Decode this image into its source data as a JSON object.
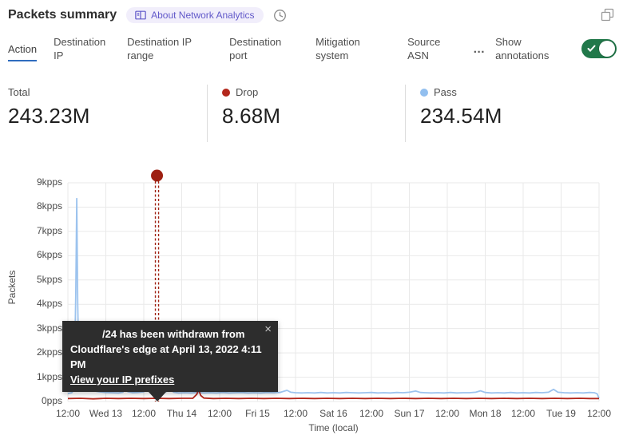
{
  "header": {
    "title": "Packets summary",
    "badge_label": "About Network Analytics"
  },
  "tabs": {
    "items": [
      {
        "label": "Action",
        "active": true
      },
      {
        "label": "Destination IP",
        "active": false
      },
      {
        "label": "Destination IP range",
        "active": false
      },
      {
        "label": "Destination port",
        "active": false
      },
      {
        "label": "Mitigation system",
        "active": false
      },
      {
        "label": "Source ASN",
        "active": false
      }
    ],
    "more_label": "…",
    "annotations_label": "Show annotations",
    "annotations_enabled": true,
    "toggle_color": "#21784a"
  },
  "stats": {
    "columns": [
      {
        "label": "Total",
        "value": "243.23M",
        "dot_color": null
      },
      {
        "label": "Drop",
        "value": "8.68M",
        "dot_color": "#b3271c"
      },
      {
        "label": "Pass",
        "value": "234.54M",
        "dot_color": "#92bfef"
      }
    ]
  },
  "tooltip": {
    "line1": "/24 has been withdrawn from",
    "line2": "Cloudflare's edge at April 13, 2022 4:11 PM",
    "link": "View your IP prefixes",
    "close": "×"
  },
  "chart_data": {
    "type": "line",
    "title": "Packets summary",
    "xlabel": "Time (local)",
    "ylabel": "Packets",
    "x_unit_hours_from": "Apr 12 12:00 local",
    "x_range_hours": [
      0,
      168
    ],
    "ylim_kpps": [
      0,
      9
    ],
    "grid": true,
    "y_ticks": [
      "0pps",
      "1kpps",
      "2kpps",
      "3kpps",
      "4kpps",
      "5kpps",
      "6kpps",
      "7kpps",
      "8kpps",
      "9kpps"
    ],
    "x_ticks": [
      {
        "hour": 0,
        "label": "12:00"
      },
      {
        "hour": 12,
        "label": "Wed 13"
      },
      {
        "hour": 24,
        "label": "12:00"
      },
      {
        "hour": 36,
        "label": "Thu 14"
      },
      {
        "hour": 48,
        "label": "12:00"
      },
      {
        "hour": 60,
        "label": "Fri 15"
      },
      {
        "hour": 72,
        "label": "12:00"
      },
      {
        "hour": 84,
        "label": "Sat 16"
      },
      {
        "hour": 96,
        "label": "12:00"
      },
      {
        "hour": 108,
        "label": "Sun 17"
      },
      {
        "hour": 120,
        "label": "12:00"
      },
      {
        "hour": 132,
        "label": "Mon 18"
      },
      {
        "hour": 144,
        "label": "12:00"
      },
      {
        "hour": 156,
        "label": "Tue 19"
      },
      {
        "hour": 168,
        "label": "12:00"
      }
    ],
    "series": [
      {
        "name": "Drop",
        "color": "#b3271c",
        "points": [
          [
            0,
            0.12
          ],
          [
            4,
            0.13
          ],
          [
            8,
            0.11
          ],
          [
            12,
            0.13
          ],
          [
            16,
            0.12
          ],
          [
            20,
            0.13
          ],
          [
            24,
            0.12
          ],
          [
            28,
            0.13
          ],
          [
            32,
            0.12
          ],
          [
            36,
            0.13
          ],
          [
            39.5,
            0.13
          ],
          [
            40.8,
            0.3
          ],
          [
            41.3,
            0.5
          ],
          [
            42,
            0.25
          ],
          [
            43,
            0.14
          ],
          [
            46,
            0.12
          ],
          [
            50,
            0.13
          ],
          [
            54,
            0.12
          ],
          [
            58,
            0.13
          ],
          [
            62,
            0.12
          ],
          [
            66,
            0.13
          ],
          [
            70,
            0.12
          ],
          [
            74,
            0.13
          ],
          [
            78,
            0.12
          ],
          [
            82,
            0.13
          ],
          [
            86,
            0.12
          ],
          [
            90,
            0.13
          ],
          [
            94,
            0.12
          ],
          [
            98,
            0.13
          ],
          [
            102,
            0.12
          ],
          [
            106,
            0.13
          ],
          [
            110,
            0.12
          ],
          [
            114,
            0.13
          ],
          [
            118,
            0.12
          ],
          [
            122,
            0.13
          ],
          [
            126,
            0.12
          ],
          [
            130,
            0.13
          ],
          [
            134,
            0.12
          ],
          [
            138,
            0.13
          ],
          [
            142,
            0.12
          ],
          [
            146,
            0.13
          ],
          [
            150,
            0.12
          ],
          [
            154,
            0.13
          ],
          [
            158,
            0.12
          ],
          [
            162,
            0.13
          ],
          [
            165,
            0.12
          ],
          [
            168,
            0.12
          ]
        ]
      },
      {
        "name": "Pass",
        "color": "#9cc3ee",
        "points": [
          [
            0,
            0.33
          ],
          [
            1.2,
            0.36
          ],
          [
            2.0,
            0.5
          ],
          [
            2.5,
            4.5
          ],
          [
            2.8,
            8.35
          ],
          [
            3.1,
            4.0
          ],
          [
            3.5,
            1.3
          ],
          [
            4.2,
            0.85
          ],
          [
            5.2,
            0.6
          ],
          [
            6.5,
            0.5
          ],
          [
            8,
            0.44
          ],
          [
            10,
            0.4
          ],
          [
            12,
            0.37
          ],
          [
            14,
            0.36
          ],
          [
            16,
            0.35
          ],
          [
            17.4,
            0.38
          ],
          [
            18.1,
            0.56
          ],
          [
            19,
            0.4
          ],
          [
            20.5,
            0.36
          ],
          [
            22,
            0.37
          ],
          [
            24,
            0.4
          ],
          [
            25.2,
            0.62
          ],
          [
            26.2,
            0.42
          ],
          [
            27.5,
            0.38
          ],
          [
            29,
            0.37
          ],
          [
            31,
            0.4
          ],
          [
            32.3,
            0.52
          ],
          [
            33.5,
            0.38
          ],
          [
            35,
            0.35
          ],
          [
            37,
            0.36
          ],
          [
            39,
            0.35
          ],
          [
            41,
            0.37
          ],
          [
            43,
            0.35
          ],
          [
            45,
            0.36
          ],
          [
            47,
            0.35
          ],
          [
            49,
            0.37
          ],
          [
            51,
            0.35
          ],
          [
            53,
            0.36
          ],
          [
            55,
            0.37
          ],
          [
            57,
            0.35
          ],
          [
            59,
            0.36
          ],
          [
            61,
            0.35
          ],
          [
            63,
            0.37
          ],
          [
            65,
            0.36
          ],
          [
            67,
            0.37
          ],
          [
            69.3,
            0.46
          ],
          [
            70.5,
            0.38
          ],
          [
            72,
            0.36
          ],
          [
            74,
            0.35
          ],
          [
            76,
            0.36
          ],
          [
            78,
            0.35
          ],
          [
            80,
            0.37
          ],
          [
            82,
            0.35
          ],
          [
            84,
            0.36
          ],
          [
            86,
            0.35
          ],
          [
            88,
            0.37
          ],
          [
            90,
            0.36
          ],
          [
            92,
            0.35
          ],
          [
            94,
            0.36
          ],
          [
            96,
            0.37
          ],
          [
            98,
            0.35
          ],
          [
            100,
            0.36
          ],
          [
            102,
            0.35
          ],
          [
            104,
            0.37
          ],
          [
            106,
            0.36
          ],
          [
            108,
            0.38
          ],
          [
            110,
            0.43
          ],
          [
            111.5,
            0.37
          ],
          [
            113,
            0.36
          ],
          [
            115,
            0.35
          ],
          [
            117,
            0.36
          ],
          [
            119,
            0.35
          ],
          [
            121,
            0.37
          ],
          [
            123,
            0.35
          ],
          [
            125,
            0.36
          ],
          [
            127,
            0.36
          ],
          [
            129,
            0.38
          ],
          [
            130.5,
            0.44
          ],
          [
            132,
            0.37
          ],
          [
            134,
            0.35
          ],
          [
            136,
            0.36
          ],
          [
            138,
            0.35
          ],
          [
            140,
            0.37
          ],
          [
            142,
            0.35
          ],
          [
            144,
            0.36
          ],
          [
            146,
            0.35
          ],
          [
            148,
            0.37
          ],
          [
            150,
            0.36
          ],
          [
            152,
            0.38
          ],
          [
            153.6,
            0.5
          ],
          [
            155,
            0.38
          ],
          [
            157,
            0.36
          ],
          [
            159,
            0.35
          ],
          [
            161,
            0.36
          ],
          [
            163,
            0.35
          ],
          [
            165,
            0.37
          ],
          [
            166.5,
            0.36
          ],
          [
            167.4,
            0.32
          ],
          [
            168,
            0.13
          ]
        ]
      }
    ],
    "annotation": {
      "hour": 28.18,
      "color": "#9e2012",
      "label": "/24 has been withdrawn from Cloudflare's edge at April 13, 2022 4:11 PM"
    }
  }
}
